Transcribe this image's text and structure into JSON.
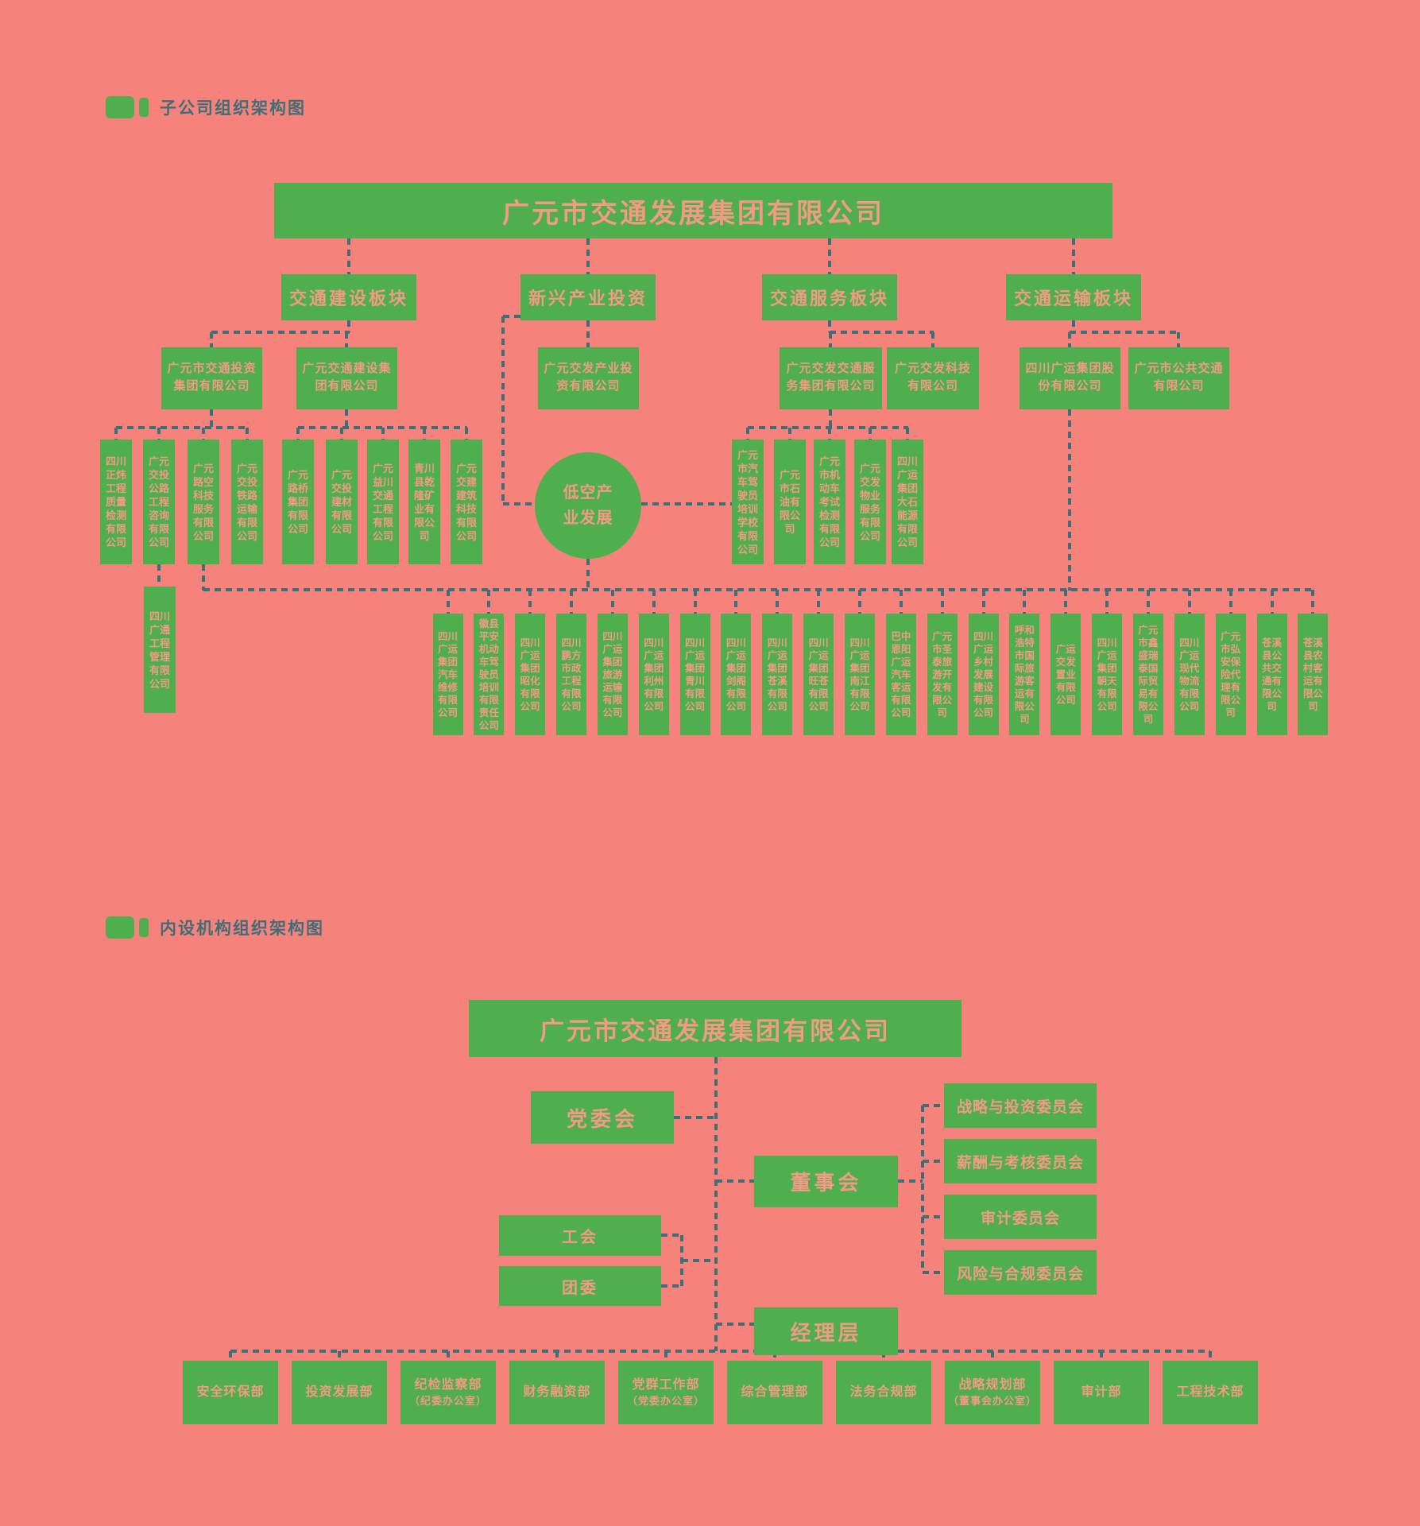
{
  "colors": {
    "background": "#F5837B",
    "box_green": "#4FAE4E",
    "box_text": "#F19A84",
    "line": "#3E6E78"
  },
  "section1": {
    "header": "子公司组织架构图",
    "root": "广元市交通发展集团有限公司",
    "plates": [
      "交通建设板块",
      "新兴产业投资",
      "交通服务板块",
      "交通运输板块"
    ],
    "groups": [
      "广元市交通投资集团有限公司",
      "广元交通建设集团有限公司",
      "广元交发产业投资有限公司",
      "广元交发交通服务集团有限公司",
      "广元交发科技有限公司",
      "四川广运集团股份有限公司",
      "广元市公共交通有限公司"
    ],
    "cluster_a": [
      "四川正炜工程质量检测有限公司",
      "广元交投公路工程咨询有限公司",
      "广元路空科技服务有限公司",
      "广元交投铁路运输有限公司"
    ],
    "cluster_b": [
      "广元路桥集团有限公司",
      "广元交投建材有限公司",
      "广元益川交通工程有限公司",
      "青川县乾隆矿业有限公司",
      "广元交建建筑科技有限公司"
    ],
    "cluster_d": [
      "广元市汽车驾驶员培训学校有限公司",
      "广元市石油有限公司",
      "广元市机动车考试检测有限公司",
      "广元交发物业服务有限公司",
      "四川广运集团大石能源有限公司"
    ],
    "sub_company": "四川广通工程管理有限公司",
    "circle_label": "低空产业发展",
    "bottom_row": [
      "四川广运集团汽车维修有限公司",
      "徽县平安机动车驾驶员培训有限责任公司",
      "四川广运集团昭化有限公司",
      "四川鹏方市政工程有限公司",
      "四川广运集团旅游运输有限公司",
      "四川广运集团利州有限公司",
      "四川广运集团青川有限公司",
      "四川广运集团剑阁有限公司",
      "四川广运集团苍溪有限公司",
      "四川广运集团旺苍有限公司",
      "四川广运集团南江有限公司",
      "巴中恩阳广运汽车客运有限公司",
      "广元市圣泰旅游开发有限公司",
      "四川广运乡村发展建设有限公司",
      "呼和浩特市国际旅游客运有限公司",
      "广运交发置业有限公司",
      "四川广运集团朝天有限公司",
      "广元市鑫盛瑞泰国际贸易有限公司",
      "四川广运现代物流有限公司",
      "广元市弘安保险代理有限公司",
      "苍溪县公共交通有限公司",
      "苍溪县农村客运有限公司"
    ]
  },
  "section2": {
    "header": "内设机构组织架构图",
    "root": "广元市交通发展集团有限公司",
    "party": "党委会",
    "board": "董事会",
    "union": "工会",
    "youth": "团委",
    "mgmt": "经理层",
    "committees": [
      "战略与投资委员会",
      "薪酬与考核委员会",
      "审计委员会",
      "风险与合规委员会"
    ],
    "departments": [
      {
        "line1": "安全环保部"
      },
      {
        "line1": "投资发展部"
      },
      {
        "line1": "纪检监察部",
        "line2": "（纪委办公室）"
      },
      {
        "line1": "财务融资部"
      },
      {
        "line1": "党群工作部",
        "line2": "（党委办公室）"
      },
      {
        "line1": "综合管理部"
      },
      {
        "line1": "法务合规部"
      },
      {
        "line1": "战略规划部",
        "line2": "（董事会办公室）"
      },
      {
        "line1": "审计部"
      },
      {
        "line1": "工程技术部"
      }
    ]
  }
}
